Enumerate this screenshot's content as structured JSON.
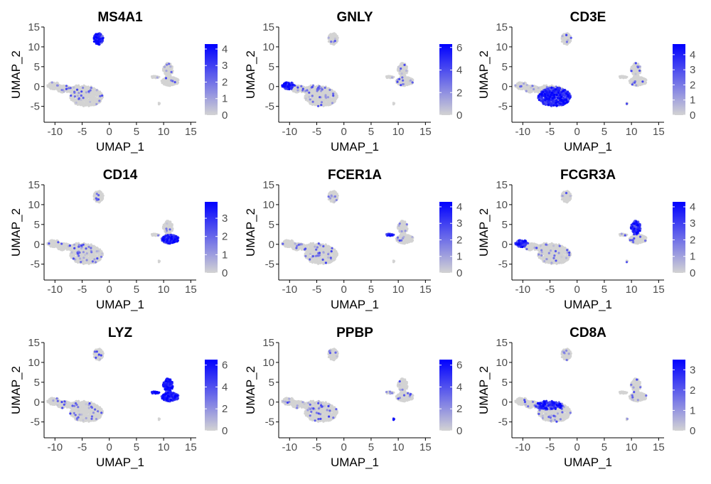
{
  "figure": {
    "colors": {
      "low": "#d3d3d3",
      "high": "#0000ff",
      "axis": "#000000",
      "tick_text": "#4d4d4d"
    }
  },
  "chart_data": [
    {
      "type": "scatter",
      "title": "MS4A1",
      "xlabel": "UMAP_1",
      "ylabel": "UMAP_2",
      "xlim": [
        -12,
        16
      ],
      "ylim": [
        -9,
        15
      ],
      "xticks": [
        -10,
        -5,
        0,
        5,
        10,
        15
      ],
      "yticks": [
        -5,
        0,
        5,
        10,
        15
      ],
      "color_scale": {
        "min": 0,
        "max": 4.3,
        "ticks": [
          0,
          1,
          2,
          3,
          4
        ]
      },
      "high_expression_clusters": [
        "b_cell_island"
      ],
      "grid": false
    },
    {
      "type": "scatter",
      "title": "GNLY",
      "xlabel": "UMAP_1",
      "ylabel": "UMAP_2",
      "xlim": [
        -12,
        16
      ],
      "ylim": [
        -9,
        15
      ],
      "xticks": [
        -10,
        -5,
        0,
        5,
        10,
        15
      ],
      "yticks": [
        -5,
        0,
        5,
        10,
        15
      ],
      "color_scale": {
        "min": 0,
        "max": 6.3,
        "ticks": [
          0,
          2,
          4,
          6
        ]
      },
      "high_expression_clusters": [
        "nk_tip"
      ],
      "grid": false
    },
    {
      "type": "scatter",
      "title": "CD3E",
      "xlabel": "UMAP_1",
      "ylabel": "UMAP_2",
      "xlim": [
        -12,
        16
      ],
      "ylim": [
        -9,
        15
      ],
      "xticks": [
        -10,
        -5,
        0,
        5,
        10,
        15
      ],
      "yticks": [
        -5,
        0,
        5,
        10,
        15
      ],
      "color_scale": {
        "min": 0,
        "max": 4.7,
        "ticks": [
          0,
          1,
          2,
          3,
          4
        ]
      },
      "high_expression_clusters": [
        "t_cell_body"
      ],
      "grid": false
    },
    {
      "type": "scatter",
      "title": "CD14",
      "xlabel": "UMAP_1",
      "ylabel": "UMAP_2",
      "xlim": [
        -12,
        16
      ],
      "ylim": [
        -9,
        15
      ],
      "xticks": [
        -10,
        -5,
        0,
        5,
        10,
        15
      ],
      "yticks": [
        -5,
        0,
        5,
        10,
        15
      ],
      "color_scale": {
        "min": 0,
        "max": 3.9,
        "ticks": [
          0,
          1,
          2,
          3
        ]
      },
      "high_expression_clusters": [
        "myeloid_lower"
      ],
      "grid": false
    },
    {
      "type": "scatter",
      "title": "FCER1A",
      "xlabel": "UMAP_1",
      "ylabel": "UMAP_2",
      "xlim": [
        -12,
        16
      ],
      "ylim": [
        -9,
        15
      ],
      "xticks": [
        -10,
        -5,
        0,
        5,
        10,
        15
      ],
      "yticks": [
        -5,
        0,
        5,
        10,
        15
      ],
      "color_scale": {
        "min": 0,
        "max": 4.3,
        "ticks": [
          0,
          1,
          2,
          3,
          4
        ]
      },
      "high_expression_clusters": [
        "dc_left"
      ],
      "grid": false
    },
    {
      "type": "scatter",
      "title": "FCGR3A",
      "xlabel": "UMAP_1",
      "ylabel": "UMAP_2",
      "xlim": [
        -12,
        16
      ],
      "ylim": [
        -9,
        15
      ],
      "xticks": [
        -10,
        -5,
        0,
        5,
        10,
        15
      ],
      "yticks": [
        -5,
        0,
        5,
        10,
        15
      ],
      "color_scale": {
        "min": 0,
        "max": 4.3,
        "ticks": [
          0,
          1,
          2,
          3,
          4
        ]
      },
      "high_expression_clusters": [
        "myeloid_upper",
        "nk_tip"
      ],
      "grid": false
    },
    {
      "type": "scatter",
      "title": "LYZ",
      "xlabel": "UMAP_1",
      "ylabel": "UMAP_2",
      "xlim": [
        -12,
        16
      ],
      "ylim": [
        -9,
        15
      ],
      "xticks": [
        -10,
        -5,
        0,
        5,
        10,
        15
      ],
      "yticks": [
        -5,
        0,
        5,
        10,
        15
      ],
      "color_scale": {
        "min": 0,
        "max": 6.5,
        "ticks": [
          0,
          2,
          4,
          6
        ]
      },
      "high_expression_clusters": [
        "myeloid_full"
      ],
      "grid": false
    },
    {
      "type": "scatter",
      "title": "PPBP",
      "xlabel": "UMAP_1",
      "ylabel": "UMAP_2",
      "xlim": [
        -12,
        16
      ],
      "ylim": [
        -9,
        15
      ],
      "xticks": [
        -10,
        -5,
        0,
        5,
        10,
        15
      ],
      "yticks": [
        -5,
        0,
        5,
        10,
        15
      ],
      "color_scale": {
        "min": 0,
        "max": 6.5,
        "ticks": [
          0,
          2,
          4,
          6
        ]
      },
      "high_expression_clusters": [
        "platelet_spot"
      ],
      "grid": false
    },
    {
      "type": "scatter",
      "title": "CD8A",
      "xlabel": "UMAP_1",
      "ylabel": "UMAP_2",
      "xlim": [
        -12,
        16
      ],
      "ylim": [
        -9,
        15
      ],
      "xticks": [
        -10,
        -5,
        0,
        5,
        10,
        15
      ],
      "yticks": [
        -5,
        0,
        5,
        10,
        15
      ],
      "color_scale": {
        "min": 0,
        "max": 3.5,
        "ticks": [
          0,
          1,
          2,
          3
        ]
      },
      "high_expression_clusters": [
        "t_cell_upper"
      ],
      "grid": false
    }
  ]
}
